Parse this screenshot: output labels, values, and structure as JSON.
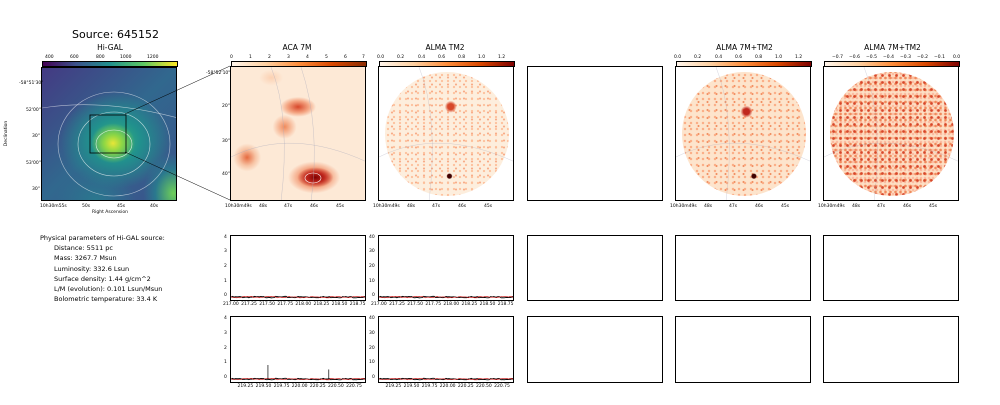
{
  "source_title": "Source: 645152",
  "panels": {
    "higal": {
      "title": "Hi-GAL",
      "cbar_ticks": [
        "400",
        "600",
        "800",
        "1000",
        "1200"
      ],
      "yticks": [
        "-58°51'30\"",
        "52'00\"",
        "30\"",
        "53'00\"",
        "30\""
      ],
      "xticks": [
        "10h30m55s",
        "50s",
        "45s",
        "40s"
      ],
      "xlabel": "Right Ascension",
      "ylabel": "Declination"
    },
    "aca7m": {
      "title": "ACA 7M",
      "cbar_ticks": [
        "0",
        "1",
        "2",
        "3",
        "4",
        "5",
        "6",
        "7"
      ],
      "yticks": [
        "-58°52'10\"",
        "20\"",
        "30\"",
        "40\""
      ],
      "xticks": [
        "10h30m49s",
        "48s",
        "47s",
        "46s",
        "45s"
      ]
    },
    "almatm2": {
      "title": "ALMA TM2",
      "cbar_ticks": [
        "0.0",
        "0.2",
        "0.4",
        "0.6",
        "0.8",
        "1.0",
        "1.2"
      ],
      "xticks": [
        "10h30m49s",
        "48s",
        "47s",
        "46s",
        "45s"
      ]
    },
    "alma7mtm2": {
      "title": "ALMA 7M+TM2",
      "cbar_ticks": [
        "0.0",
        "0.2",
        "0.4",
        "0.6",
        "0.8",
        "1.0",
        "1.2"
      ],
      "xticks": [
        "10h30m49s",
        "48s",
        "47s",
        "46s",
        "45s"
      ]
    },
    "alma7mtm2b": {
      "title": "ALMA 7M+TM2",
      "cbar_ticks": [
        "−0.7",
        "−0.6",
        "−0.5",
        "−0.4",
        "−0.3",
        "−0.2",
        "−0.1",
        "0.0"
      ],
      "xticks": [
        "10h30m49s",
        "48s",
        "47s",
        "46s",
        "45s"
      ]
    }
  },
  "params": {
    "heading": "Physical parameters of Hi-GAL source:",
    "lines": [
      "Distance: 5511 pc",
      "Mass: 3267.7 Msun",
      "Luminosity: 332.6 Lsun",
      "Surface density: 1.44 g/cm^2",
      "L/M (evolution): 0.101 Lsun/Msun",
      "Bolometric temperature: 33.4 K"
    ]
  },
  "chart_data": [
    {
      "type": "line",
      "panel": "spectrum-aca-row1",
      "x_ticks": [
        "217.00",
        "217.25",
        "217.50",
        "217.75",
        "218.00",
        "218.25",
        "218.50",
        "218.75"
      ],
      "y_ticks": [
        "0",
        "1",
        "2",
        "3",
        "4"
      ],
      "xlim": [
        217.0,
        218.85
      ],
      "ylim": [
        -0.2,
        4.2
      ],
      "series": [
        {
          "x": [
            217.0,
            218.85
          ],
          "y": [
            0.0,
            0.0
          ]
        }
      ],
      "spikes": []
    },
    {
      "type": "line",
      "panel": "spectrum-alma-row1",
      "x_ticks": [
        "217.00",
        "217.25",
        "217.50",
        "217.75",
        "218.00",
        "218.25",
        "218.50",
        "218.75"
      ],
      "y_ticks": [
        "0",
        "10",
        "20",
        "30",
        "40"
      ],
      "xlim": [
        217.0,
        218.85
      ],
      "ylim": [
        -2,
        42
      ],
      "series": [
        {
          "x": [
            217.0,
            218.85
          ],
          "y": [
            0.0,
            0.0
          ]
        }
      ],
      "spikes": []
    },
    {
      "type": "line",
      "panel": "spectrum-aca-row2",
      "x_ticks": [
        "219.25",
        "219.50",
        "219.75",
        "220.00",
        "220.25",
        "220.50",
        "220.75"
      ],
      "y_ticks": [
        "0",
        "1",
        "2",
        "3",
        "4"
      ],
      "xlim": [
        219.05,
        220.9
      ],
      "ylim": [
        -0.2,
        4.2
      ],
      "series": [
        {
          "x": [
            219.05,
            220.9
          ],
          "y": [
            0.0,
            0.0
          ]
        }
      ],
      "spikes": [
        {
          "x": 219.56,
          "y": 0.95
        },
        {
          "x": 220.4,
          "y": 0.65
        }
      ]
    },
    {
      "type": "line",
      "panel": "spectrum-alma-row2",
      "x_ticks": [
        "219.25",
        "219.50",
        "219.75",
        "220.00",
        "220.25",
        "220.50",
        "220.75"
      ],
      "y_ticks": [
        "0",
        "10",
        "20",
        "30",
        "40"
      ],
      "xlim": [
        219.05,
        220.9
      ],
      "ylim": [
        -2,
        42
      ],
      "series": [
        {
          "x": [
            219.05,
            220.9
          ],
          "y": [
            0.0,
            0.0
          ]
        }
      ],
      "spikes": []
    }
  ]
}
